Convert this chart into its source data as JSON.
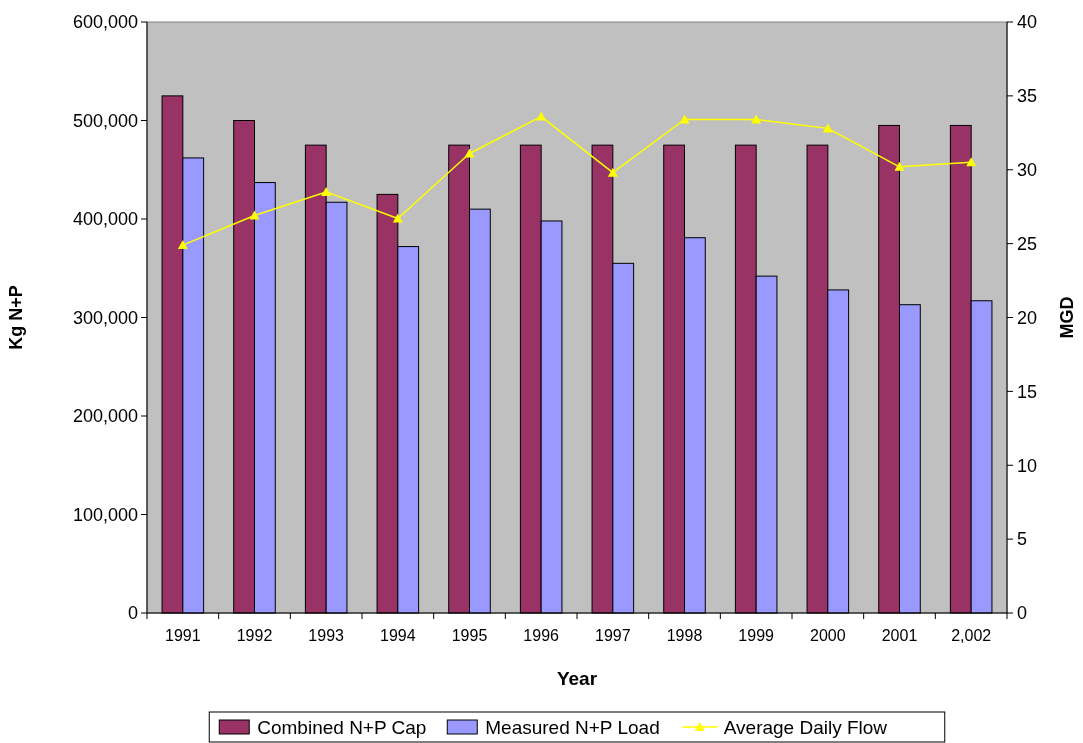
{
  "chart_data": {
    "type": "bar",
    "xlabel": "Year",
    "ylabel": "Kg N+P",
    "y2label": "MGD",
    "categories": [
      "1991",
      "1992",
      "1993",
      "1994",
      "1995",
      "1996",
      "1997",
      "1998",
      "1999",
      "2000",
      "2001",
      "2,002"
    ],
    "series": [
      {
        "name": "Combined N+P Cap",
        "color": "#993366",
        "values": [
          525000,
          500000,
          475000,
          425000,
          475000,
          475000,
          475000,
          475000,
          475000,
          475000,
          495000,
          495000
        ]
      },
      {
        "name": "Measured N+P Load",
        "color": "#9999ff",
        "values": [
          462000,
          437000,
          417000,
          372000,
          410000,
          398000,
          355000,
          381000,
          342000,
          328000,
          313000,
          317000
        ]
      },
      {
        "name": "Average Daily Flow",
        "type": "line",
        "axis": "y2",
        "marker": "triangle",
        "color": "#ffff00",
        "values": [
          24.9,
          26.9,
          28.5,
          26.7,
          31.1,
          33.6,
          29.8,
          33.4,
          33.4,
          32.8,
          30.2,
          30.5
        ]
      }
    ],
    "ylim": [
      0,
      600000
    ],
    "yticks": [
      {
        "value": 0,
        "label": "0"
      },
      {
        "value": 100000,
        "label": "100,000"
      },
      {
        "value": 200000,
        "label": "200,000"
      },
      {
        "value": 300000,
        "label": "300,000"
      },
      {
        "value": 400000,
        "label": "400,000"
      },
      {
        "value": 500000,
        "label": "500,000"
      },
      {
        "value": 600000,
        "label": "600,000"
      }
    ],
    "y2lim": [
      0,
      40
    ],
    "y2ticks": [
      0,
      5,
      10,
      15,
      20,
      25,
      30,
      35,
      40
    ],
    "legend": "bottom"
  }
}
